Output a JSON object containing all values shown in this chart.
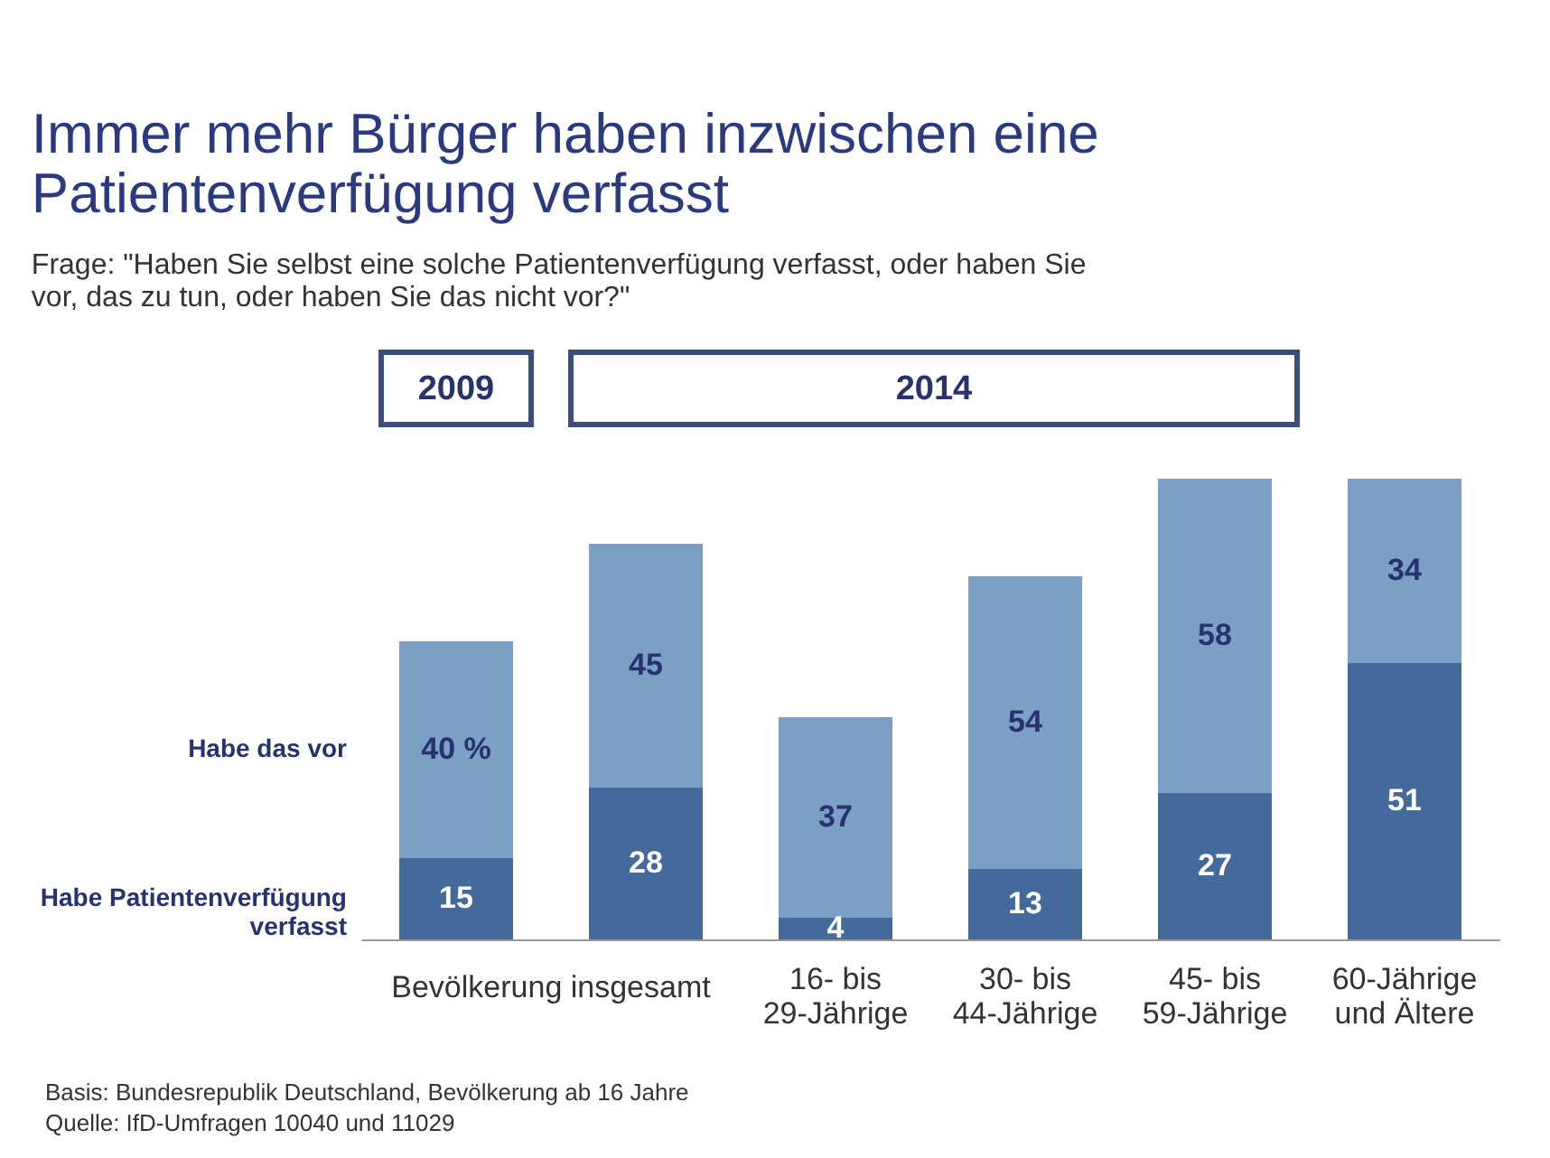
{
  "chart_data": {
    "type": "bar",
    "stacked": true,
    "title": "Immer mehr Bürger haben inzwischen eine Patientenverfügung verfasst",
    "subtitle": "Frage: \"Haben Sie selbst eine solche Patientenverfügung verfasst, oder haben Sie vor, das zu tun, oder haben Sie das nicht vor?\"",
    "categories": [
      null,
      null,
      "16- bis 29-Jährige",
      "30- bis 44-Jährige",
      "45- bis 59-Jährige",
      "60-Jährige und Ältere"
    ],
    "series": [
      {
        "name": "Habe Patientenverfügung verfasst",
        "color": "#44699b",
        "values": [
          15,
          28,
          4,
          13,
          27,
          51
        ],
        "value_labels": [
          "15",
          "28",
          "4",
          "13",
          "27",
          "51"
        ]
      },
      {
        "name": "Habe das vor",
        "color": "#7b9fc5",
        "values": [
          40,
          45,
          37,
          54,
          58,
          34
        ],
        "value_labels": [
          "40 %",
          "45",
          "37",
          "54",
          "58",
          "34"
        ]
      }
    ],
    "ylim": [
      0,
      85
    ],
    "grid": false,
    "annotations": [
      "Bevölkerung insgesamt",
      "2009",
      "2014",
      "Basis: Bundesrepublik Deutschland, Bevölkerung ab 16 Jahre",
      "Quelle: IfD-Umfragen 10040 und 11029"
    ]
  }
}
